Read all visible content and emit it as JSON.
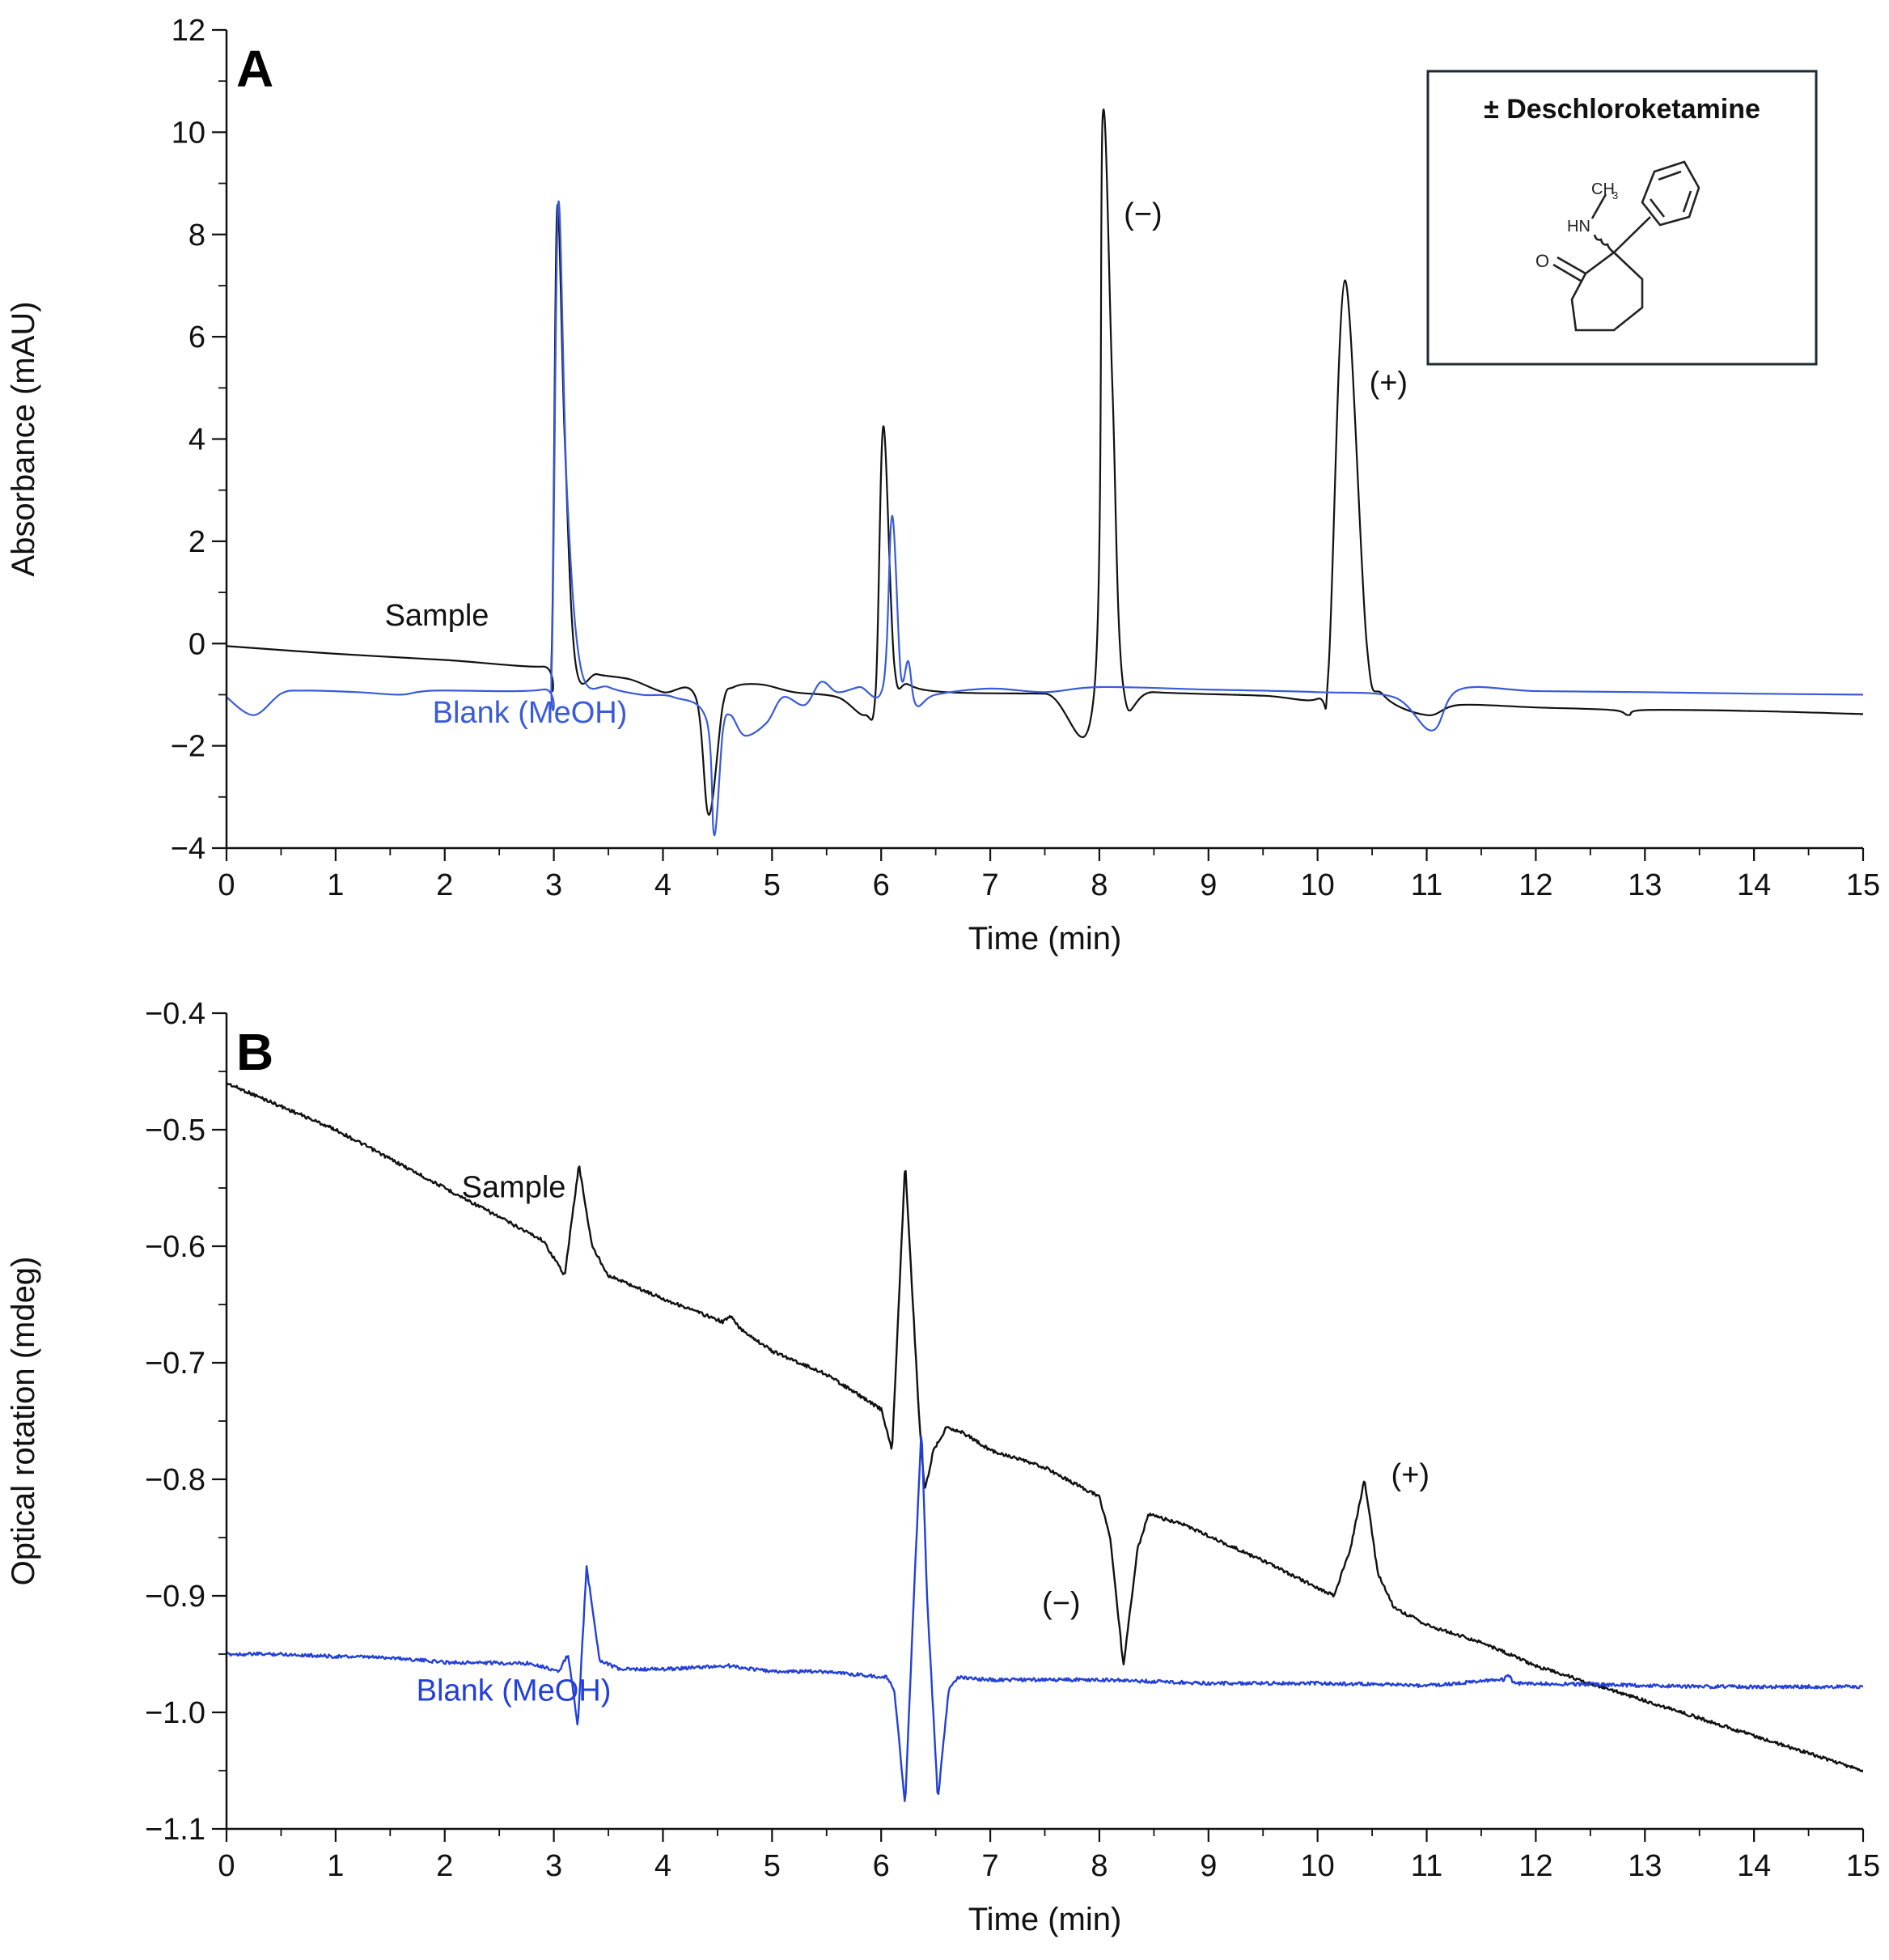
{
  "chart_data": [
    {
      "panel": "A",
      "type": "line",
      "title": "",
      "xlabel": "Time (min)",
      "ylabel": "Absorbance (mAU)",
      "xlim": [
        0,
        15
      ],
      "ylim": [
        -4,
        12
      ],
      "x_ticks": [
        0,
        1,
        2,
        3,
        4,
        5,
        6,
        7,
        8,
        9,
        10,
        11,
        12,
        13,
        14,
        15
      ],
      "x_tick_labels": [
        "0",
        "1",
        "2",
        "3",
        "4",
        "5",
        "6",
        "7",
        "8",
        "9",
        "10",
        "11",
        "12",
        "13",
        "14",
        "15"
      ],
      "y_ticks": [
        -4,
        -2,
        0,
        2,
        4,
        6,
        8,
        10,
        12
      ],
      "y_tick_labels": [
        "−4",
        "−2",
        "0",
        "2",
        "4",
        "6",
        "8",
        "10",
        "12"
      ],
      "grid": false,
      "series": [
        {
          "name": "Sample",
          "color": "#111111",
          "label": "Sample",
          "points": [
            [
              0,
              -0.05
            ],
            [
              1,
              -0.2
            ],
            [
              2,
              -0.32
            ],
            [
              2.9,
              -0.45
            ],
            [
              2.98,
              -0.2
            ],
            [
              3.03,
              8.5
            ],
            [
              3.1,
              4
            ],
            [
              3.2,
              -0.4
            ],
            [
              3.4,
              -0.6
            ],
            [
              3.7,
              -0.7
            ],
            [
              4,
              -0.95
            ],
            [
              4.3,
              -1.05
            ],
            [
              4.42,
              -3.35
            ],
            [
              4.55,
              -1.2
            ],
            [
              4.65,
              -0.85
            ],
            [
              4.9,
              -0.8
            ],
            [
              5.2,
              -0.95
            ],
            [
              5.6,
              -1.05
            ],
            [
              5.85,
              -1.4
            ],
            [
              5.95,
              -0.9
            ],
            [
              6.02,
              4.25
            ],
            [
              6.12,
              -0.4
            ],
            [
              6.25,
              -0.8
            ],
            [
              6.6,
              -0.95
            ],
            [
              7.5,
              -0.98
            ],
            [
              7.95,
              -1.0
            ],
            [
              8.03,
              10.3
            ],
            [
              8.12,
              5
            ],
            [
              8.22,
              -0.85
            ],
            [
              8.5,
              -0.95
            ],
            [
              9.5,
              -1.02
            ],
            [
              10.0,
              -1.08
            ],
            [
              10.1,
              -0.5
            ],
            [
              10.25,
              7.1
            ],
            [
              10.45,
              0
            ],
            [
              10.6,
              -1.0
            ],
            [
              11.0,
              -1.4
            ],
            [
              11.3,
              -1.2
            ],
            [
              12,
              -1.25
            ],
            [
              12.7,
              -1.3
            ],
            [
              12.85,
              -1.4
            ],
            [
              13,
              -1.3
            ],
            [
              14,
              -1.32
            ],
            [
              15,
              -1.38
            ]
          ]
        },
        {
          "name": "Blank (MeOH)",
          "color": "#3a5bd9",
          "label": "Blank (MeOH)",
          "points": [
            [
              0,
              -1.05
            ],
            [
              0.25,
              -1.4
            ],
            [
              0.5,
              -0.98
            ],
            [
              0.7,
              -0.92
            ],
            [
              1.2,
              -0.95
            ],
            [
              1.6,
              -1.0
            ],
            [
              1.9,
              -0.92
            ],
            [
              2.9,
              -0.9
            ],
            [
              2.98,
              -0.5
            ],
            [
              3.04,
              8.6
            ],
            [
              3.12,
              3
            ],
            [
              3.25,
              -0.5
            ],
            [
              3.5,
              -0.85
            ],
            [
              3.8,
              -1.0
            ],
            [
              4.1,
              -1.05
            ],
            [
              4.4,
              -1.5
            ],
            [
              4.47,
              -3.75
            ],
            [
              4.55,
              -1.7
            ],
            [
              4.62,
              -1.4
            ],
            [
              4.75,
              -1.8
            ],
            [
              4.95,
              -1.55
            ],
            [
              5.1,
              -1.05
            ],
            [
              5.3,
              -1.2
            ],
            [
              5.45,
              -0.75
            ],
            [
              5.6,
              -0.95
            ],
            [
              5.8,
              -0.85
            ],
            [
              6.02,
              -0.8
            ],
            [
              6.1,
              2.5
            ],
            [
              6.18,
              -0.6
            ],
            [
              6.25,
              -0.35
            ],
            [
              6.32,
              -1.2
            ],
            [
              6.5,
              -1.0
            ],
            [
              7,
              -0.88
            ],
            [
              7.5,
              -0.95
            ],
            [
              8,
              -0.85
            ],
            [
              9,
              -0.9
            ],
            [
              10,
              -0.95
            ],
            [
              10.7,
              -1.05
            ],
            [
              11.05,
              -1.7
            ],
            [
              11.3,
              -0.9
            ],
            [
              12,
              -0.93
            ],
            [
              13,
              -0.95
            ],
            [
              14,
              -0.98
            ],
            [
              15,
              -1.0
            ]
          ]
        }
      ],
      "annotations": [
        {
          "text": "(−)",
          "x": 8.4,
          "y": 8.2
        },
        {
          "text": "(+)",
          "x": 10.65,
          "y": 4.9
        }
      ],
      "inset_title": "± Deschloroketamine",
      "inset_labels": {
        "methyl": "CH",
        "methyl_sub": "3",
        "amine": "HN",
        "carbonyl": "O"
      }
    },
    {
      "panel": "B",
      "type": "line",
      "title": "",
      "xlabel": "Time (min)",
      "ylabel": "Optical rotation (mdeg)",
      "xlim": [
        0,
        15
      ],
      "ylim": [
        -1.1,
        -0.4
      ],
      "x_ticks": [
        0,
        1,
        2,
        3,
        4,
        5,
        6,
        7,
        8,
        9,
        10,
        11,
        12,
        13,
        14,
        15
      ],
      "x_tick_labels": [
        "0",
        "1",
        "2",
        "3",
        "4",
        "5",
        "6",
        "7",
        "8",
        "9",
        "10",
        "11",
        "12",
        "13",
        "14",
        "15"
      ],
      "y_ticks": [
        -1.1,
        -1.0,
        -0.9,
        -0.8,
        -0.7,
        -0.6,
        -0.5,
        -0.4
      ],
      "y_tick_labels": [
        "−1.1",
        "−1.0",
        "−0.9",
        "−0.8",
        "−0.7",
        "−0.6",
        "−0.5",
        "−0.4"
      ],
      "grid": false,
      "series": [
        {
          "name": "Sample",
          "color": "#111111",
          "label": "Sample",
          "points": [
            [
              0,
              -0.46
            ],
            [
              1,
              -0.5
            ],
            [
              2,
              -0.55
            ],
            [
              2.9,
              -0.595
            ],
            [
              3.1,
              -0.625
            ],
            [
              3.23,
              -0.53
            ],
            [
              3.35,
              -0.6
            ],
            [
              3.5,
              -0.625
            ],
            [
              4,
              -0.645
            ],
            [
              4.55,
              -0.665
            ],
            [
              4.62,
              -0.66
            ],
            [
              4.7,
              -0.67
            ],
            [
              5,
              -0.69
            ],
            [
              5.5,
              -0.71
            ],
            [
              6,
              -0.74
            ],
            [
              6.1,
              -0.775
            ],
            [
              6.22,
              -0.528
            ],
            [
              6.35,
              -0.75
            ],
            [
              6.4,
              -0.81
            ],
            [
              6.48,
              -0.775
            ],
            [
              6.6,
              -0.755
            ],
            [
              6.75,
              -0.76
            ],
            [
              7,
              -0.775
            ],
            [
              7.5,
              -0.79
            ],
            [
              8,
              -0.815
            ],
            [
              8.1,
              -0.85
            ],
            [
              8.22,
              -0.96
            ],
            [
              8.35,
              -0.86
            ],
            [
              8.45,
              -0.83
            ],
            [
              8.8,
              -0.84
            ],
            [
              9.5,
              -0.87
            ],
            [
              10.15,
              -0.9
            ],
            [
              10.3,
              -0.86
            ],
            [
              10.43,
              -0.8
            ],
            [
              10.55,
              -0.88
            ],
            [
              10.7,
              -0.91
            ],
            [
              11,
              -0.925
            ],
            [
              11.5,
              -0.94
            ],
            [
              12,
              -0.96
            ],
            [
              13,
              -0.99
            ],
            [
              14,
              -1.02
            ],
            [
              15,
              -1.05
            ]
          ]
        },
        {
          "name": "Blank (MeOH)",
          "color": "#2340d8",
          "label": "Blank (MeOH)",
          "points": [
            [
              0,
              -0.95
            ],
            [
              0.5,
              -0.95
            ],
            [
              1,
              -0.952
            ],
            [
              1.5,
              -0.953
            ],
            [
              2,
              -0.957
            ],
            [
              2.8,
              -0.958
            ],
            [
              3.05,
              -0.965
            ],
            [
              3.13,
              -0.95
            ],
            [
              3.22,
              -1.012
            ],
            [
              3.3,
              -0.875
            ],
            [
              3.42,
              -0.955
            ],
            [
              3.6,
              -0.963
            ],
            [
              4,
              -0.963
            ],
            [
              4.6,
              -0.96
            ],
            [
              5,
              -0.965
            ],
            [
              5.5,
              -0.965
            ],
            [
              6.05,
              -0.97
            ],
            [
              6.12,
              -0.98
            ],
            [
              6.22,
              -1.08
            ],
            [
              6.3,
              -0.9
            ],
            [
              6.37,
              -0.755
            ],
            [
              6.42,
              -0.9
            ],
            [
              6.52,
              -1.075
            ],
            [
              6.62,
              -0.98
            ],
            [
              6.7,
              -0.97
            ],
            [
              7,
              -0.972
            ],
            [
              8,
              -0.972
            ],
            [
              9,
              -0.975
            ],
            [
              10,
              -0.975
            ],
            [
              11,
              -0.977
            ],
            [
              11.7,
              -0.972
            ],
            [
              11.75,
              -0.968
            ],
            [
              11.8,
              -0.975
            ],
            [
              12.5,
              -0.976
            ],
            [
              13.5,
              -0.978
            ],
            [
              14.5,
              -0.978
            ],
            [
              15,
              -0.978
            ]
          ]
        }
      ],
      "annotations": [
        {
          "text": "(+)",
          "x": 10.85,
          "y": -0.805
        },
        {
          "text": "(−)",
          "x": 7.65,
          "y": -0.915
        }
      ]
    }
  ]
}
